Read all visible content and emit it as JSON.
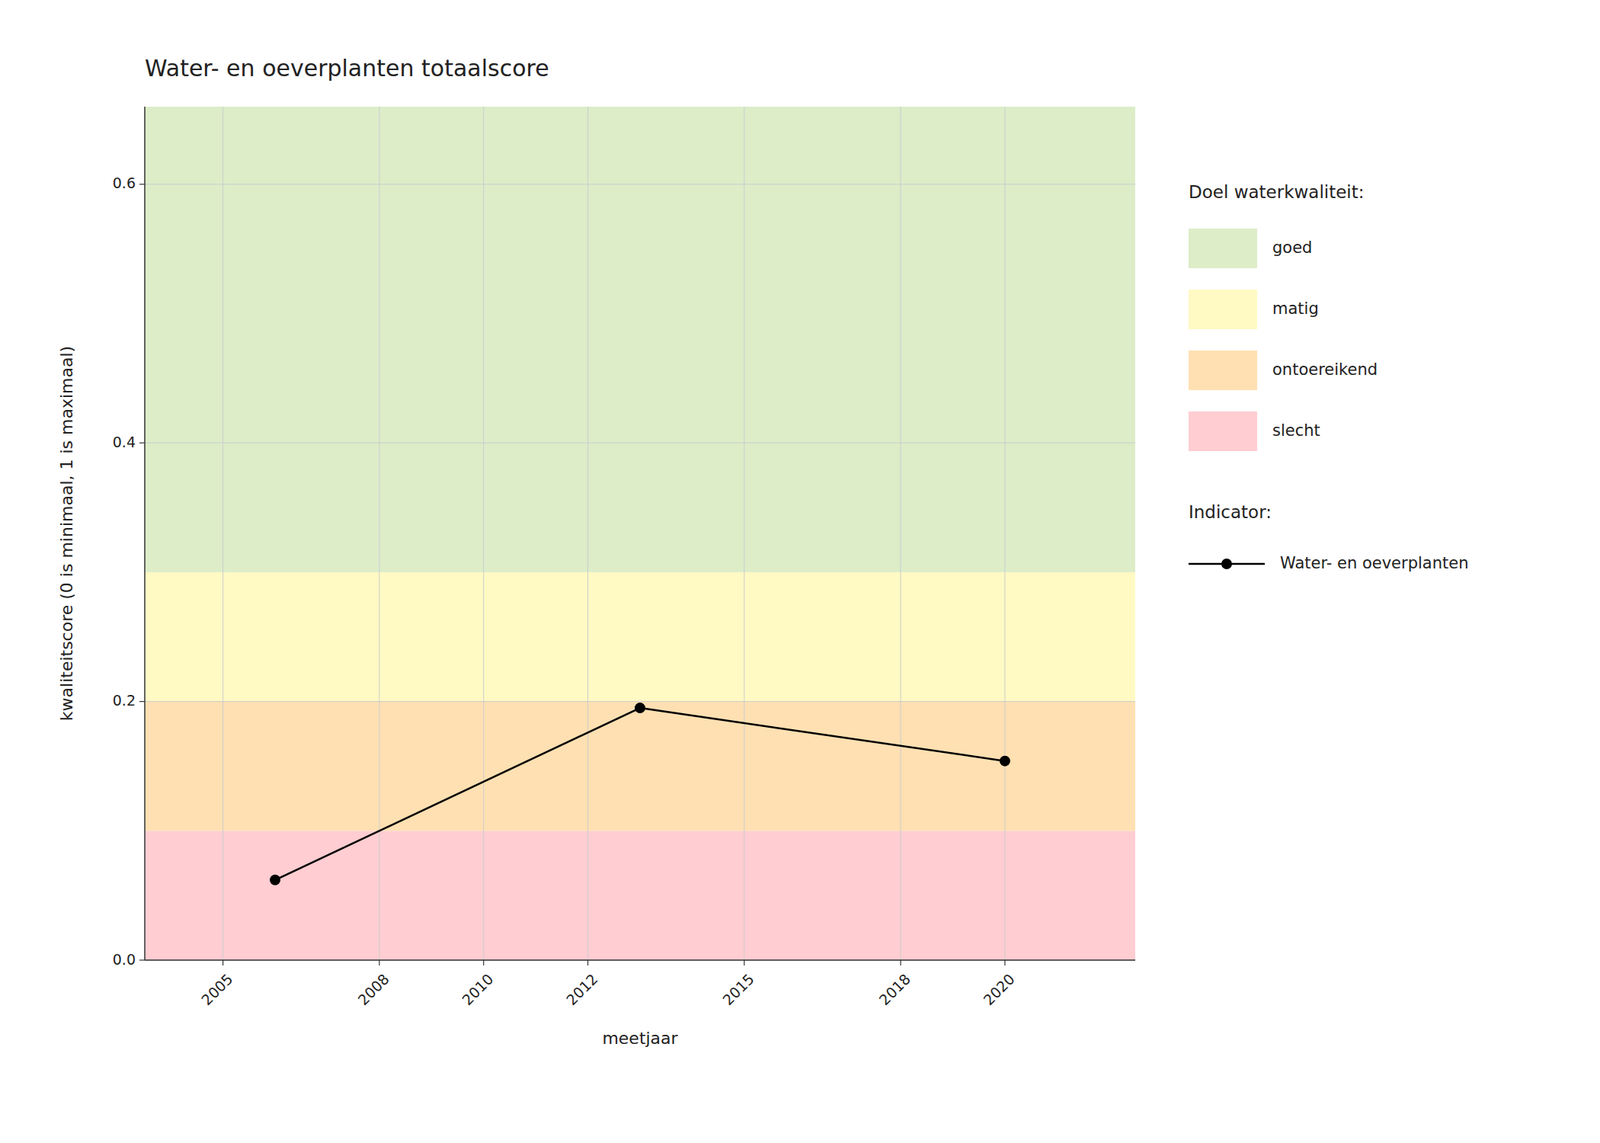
{
  "chart_data": {
    "type": "line",
    "title": "Water- en oeverplanten totaalscore",
    "x_label": "meetjaar",
    "y_label": "kwaliteitscore (0 is minimaal, 1 is maximaal)",
    "x": [
      2006,
      2013,
      2020
    ],
    "series": [
      {
        "name": "Water- en oeverplanten",
        "color": "#000000",
        "marker": "circle",
        "line_style": "solid",
        "values": [
          0.062,
          0.195,
          0.154
        ]
      }
    ],
    "xlim": [
      2003.5,
      2022.5
    ],
    "ylim": [
      0,
      0.66
    ],
    "xticks": [
      2005,
      2008,
      2010,
      2012,
      2015,
      2018,
      2020
    ],
    "yticks": [
      {
        "value": 0.0,
        "label": "0.0"
      },
      0.2,
      0.4,
      0.6
    ],
    "grid": true,
    "legend": "right",
    "band_legend_title": "Doel waterkwaliteit:",
    "series_legend_title": "Indicator:",
    "bands": [
      {
        "name": "slecht",
        "color": "#FFCDD2",
        "ymin": 0.0,
        "ymax": 0.1
      },
      {
        "name": "ontoereikend",
        "color": "#FFE0B2",
        "ymin": 0.1,
        "ymax": 0.2
      },
      {
        "name": "matig",
        "color": "#FFF9C4",
        "ymin": 0.2,
        "ymax": 0.3
      },
      {
        "name": "goed",
        "color": "#DCEDC8",
        "ymin": 0.3,
        "ymax": 0.66
      }
    ]
  }
}
